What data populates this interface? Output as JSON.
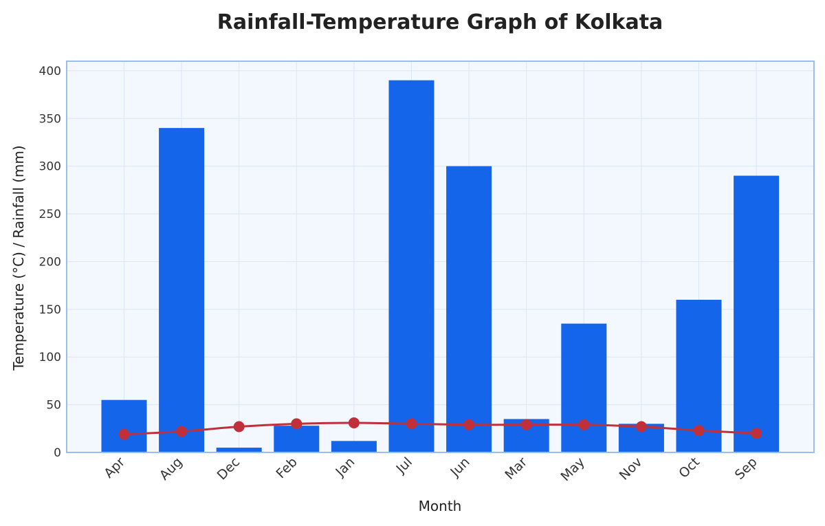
{
  "chart_data": {
    "type": "bar",
    "title": "Rainfall-Temperature Graph of Kolkata",
    "xlabel": "Month",
    "ylabel": "Temperature (°C) / Rainfall (mm)",
    "ylim": [
      0,
      410
    ],
    "yticks": [
      0,
      50,
      100,
      150,
      200,
      250,
      300,
      350,
      400
    ],
    "grid": true,
    "categories": [
      "Apr",
      "Aug",
      "Dec",
      "Feb",
      "Jan",
      "Jul",
      "Jun",
      "Mar",
      "May",
      "Nov",
      "Oct",
      "Sep"
    ],
    "series": [
      {
        "type": "bar",
        "values": [
          55,
          340,
          5,
          28,
          12,
          390,
          300,
          35,
          135,
          30,
          160,
          290
        ],
        "color": "#1565ea"
      },
      {
        "type": "line",
        "values": [
          19,
          22,
          27,
          30,
          31,
          30,
          29,
          29,
          29,
          27,
          23,
          20
        ],
        "color": "#c0303a"
      }
    ],
    "colors": {
      "plot_background": "#f3f7fe",
      "plot_border": "#9bbcf0",
      "grid": "#dbe6f7"
    }
  }
}
